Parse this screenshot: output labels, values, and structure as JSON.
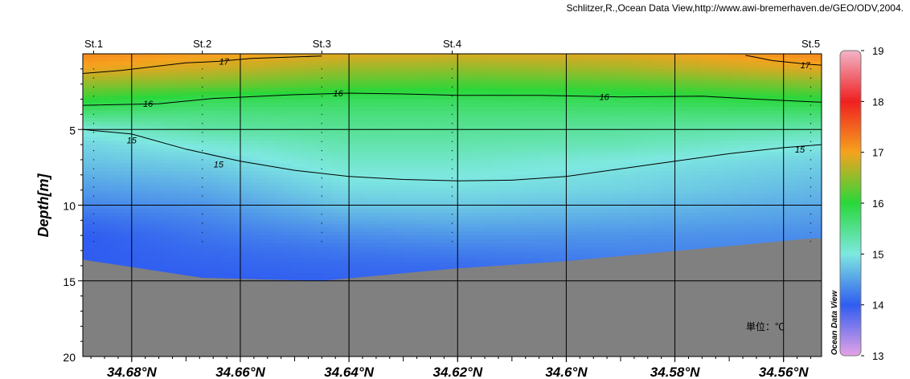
{
  "credit": "Schlitzer,R.,Ocean Data View,http://www.awi-bremerhaven.de/GEO/ODV,2004.",
  "unit_label": "単位：℃",
  "chart_data": {
    "type": "heatmap",
    "title": "",
    "xlabel": "",
    "ylabel": "Depth[m]",
    "x_reversed": true,
    "xlim": [
      34.553,
      34.689
    ],
    "ylim": [
      0,
      20
    ],
    "y_inverted": true,
    "x_ticks": [
      34.68,
      34.66,
      34.64,
      34.62,
      34.6,
      34.58,
      34.56
    ],
    "x_tick_labels": [
      "34.68°N",
      "34.66°N",
      "34.64°N",
      "34.62°N",
      "34.6°N",
      "34.58°N",
      "34.56°N"
    ],
    "y_ticks": [
      5,
      10,
      15,
      20
    ],
    "y_tick_labels": [
      "5",
      "10",
      "15",
      "20"
    ],
    "grid": true,
    "stations": [
      {
        "name": "St.1",
        "lat": 34.687
      },
      {
        "name": "St.2",
        "lat": 34.667
      },
      {
        "name": "St.3",
        "lat": 34.645
      },
      {
        "name": "St.4",
        "lat": 34.621
      },
      {
        "name": "St.5",
        "lat": 34.555
      }
    ],
    "colorbar": {
      "range": [
        13,
        19
      ],
      "ticks": [
        13,
        14,
        15,
        16,
        17,
        18,
        19
      ],
      "tick_labels": [
        "13",
        "14",
        "15",
        "16",
        "17",
        "18",
        "19"
      ],
      "colors": [
        "#e6a2e6",
        "#2f5cf0",
        "#7ee8e0",
        "#28d83a",
        "#f6a21e",
        "#ef2020",
        "#f2b4c8"
      ],
      "brand": "Ocean Data View"
    },
    "bottom_depth": [
      {
        "lat": 34.689,
        "depth": 13.6
      },
      {
        "lat": 34.667,
        "depth": 14.8
      },
      {
        "lat": 34.645,
        "depth": 15.0
      },
      {
        "lat": 34.621,
        "depth": 14.2
      },
      {
        "lat": 34.6,
        "depth": 13.7
      },
      {
        "lat": 34.555,
        "depth": 12.2
      },
      {
        "lat": 34.553,
        "depth": 12.2
      }
    ],
    "contours": [
      {
        "value": 17,
        "label": "17",
        "points": [
          [
            34.689,
            1.3
          ],
          [
            34.682,
            1.1
          ],
          [
            34.67,
            0.6
          ],
          [
            34.664,
            0.5
          ],
          [
            34.658,
            0.3
          ],
          [
            34.645,
            0.15
          ]
        ],
        "label_positions": [
          [
            34.663,
            0.5
          ]
        ]
      },
      {
        "value": 17,
        "label": "17",
        "points": [
          [
            34.567,
            0.1
          ],
          [
            34.562,
            0.45
          ],
          [
            34.558,
            0.6
          ],
          [
            34.555,
            0.7
          ],
          [
            34.553,
            0.75
          ]
        ],
        "label_positions": [
          [
            34.556,
            0.75
          ]
        ]
      },
      {
        "value": 16,
        "label": "16",
        "points": [
          [
            34.689,
            3.4
          ],
          [
            34.675,
            3.3
          ],
          [
            34.665,
            2.95
          ],
          [
            34.65,
            2.7
          ],
          [
            34.64,
            2.6
          ],
          [
            34.63,
            2.65
          ],
          [
            34.62,
            2.75
          ],
          [
            34.605,
            2.75
          ],
          [
            34.59,
            2.85
          ],
          [
            34.575,
            2.8
          ],
          [
            34.565,
            3.0
          ],
          [
            34.553,
            3.2
          ]
        ],
        "label_positions": [
          [
            34.677,
            3.3
          ],
          [
            34.642,
            2.6
          ],
          [
            34.593,
            2.85
          ]
        ]
      },
      {
        "value": 15,
        "label": "15",
        "points": [
          [
            34.689,
            5.0
          ],
          [
            34.68,
            5.3
          ],
          [
            34.67,
            6.3
          ],
          [
            34.66,
            7.1
          ],
          [
            34.65,
            7.7
          ],
          [
            34.64,
            8.1
          ],
          [
            34.63,
            8.3
          ],
          [
            34.62,
            8.4
          ],
          [
            34.61,
            8.35
          ],
          [
            34.6,
            8.1
          ],
          [
            34.59,
            7.6
          ],
          [
            34.58,
            7.1
          ],
          [
            34.57,
            6.6
          ],
          [
            34.56,
            6.2
          ],
          [
            34.553,
            6.0
          ]
        ],
        "label_positions": [
          [
            34.68,
            5.7
          ],
          [
            34.664,
            7.3
          ],
          [
            34.557,
            6.3
          ]
        ]
      }
    ],
    "temperature_profile": {
      "depth": [
        0,
        1,
        2,
        3,
        4,
        5,
        6,
        7,
        8,
        9,
        10,
        11,
        12,
        13,
        14,
        15
      ],
      "columns": [
        {
          "lat": 34.689,
          "values": [
            17.2,
            16.95,
            16.5,
            16.05,
            15.6,
            15.05,
            14.85,
            14.75,
            14.6,
            14.45,
            14.3,
            14.12,
            14.0,
            14.0,
            14.0,
            14.0
          ]
        },
        {
          "lat": 34.667,
          "values": [
            17.05,
            16.8,
            16.4,
            15.85,
            15.55,
            15.35,
            15.05,
            14.85,
            14.7,
            14.55,
            14.4,
            14.28,
            14.18,
            14.1,
            14.05,
            14.0
          ]
        },
        {
          "lat": 34.64,
          "values": [
            16.9,
            16.55,
            16.2,
            15.8,
            15.6,
            15.45,
            15.3,
            15.15,
            15.02,
            14.9,
            14.75,
            14.55,
            14.35,
            14.2,
            14.1,
            14.05
          ]
        },
        {
          "lat": 34.62,
          "values": [
            16.85,
            16.5,
            16.15,
            15.8,
            15.6,
            15.45,
            15.3,
            15.15,
            15.02,
            14.92,
            14.78,
            14.6,
            14.42,
            14.25,
            14.12,
            14.05
          ]
        },
        {
          "lat": 34.59,
          "values": [
            16.9,
            16.6,
            16.2,
            15.85,
            15.6,
            15.4,
            15.25,
            15.02,
            14.92,
            14.85,
            14.7,
            14.55,
            14.4,
            14.3,
            14.2,
            14.1
          ]
        },
        {
          "lat": 34.553,
          "values": [
            17.2,
            16.9,
            16.45,
            16.0,
            15.65,
            15.3,
            15.0,
            14.85,
            14.75,
            14.65,
            14.55,
            14.45,
            14.35,
            14.3,
            14.25,
            14.2
          ]
        }
      ]
    }
  }
}
